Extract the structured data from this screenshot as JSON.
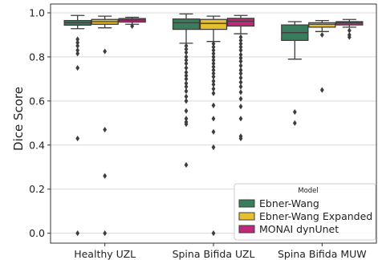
{
  "chart_data": {
    "type": "box",
    "xlabel": "",
    "ylabel": "Dice Score",
    "ylim": [
      -0.045,
      1.04
    ],
    "yticks": [
      "0.0",
      "0.2",
      "0.4",
      "0.6",
      "0.8",
      "1.0"
    ],
    "grid": "horizontal",
    "legend_position": "lower-right",
    "legend_title": "Model",
    "categories": [
      "Healthy UZL",
      "Spina Bifida UZL",
      "Spina Bifida MUW"
    ],
    "series": [
      {
        "name": "Ebner-Wang",
        "color": "#3a7d5c",
        "boxes": [
          {
            "whislo": 0.928,
            "q1": 0.944,
            "med": 0.955,
            "q3": 0.965,
            "whishi": 0.988,
            "fliers": [
              0.88,
              0.865,
              0.85,
              0.83,
              0.815,
              0.75,
              0.43,
              0.0
            ]
          },
          {
            "whislo": 0.862,
            "q1": 0.925,
            "med": 0.955,
            "q3": 0.972,
            "whishi": 0.995,
            "fliers": [
              0.85,
              0.835,
              0.82,
              0.8,
              0.785,
              0.77,
              0.75,
              0.73,
              0.715,
              0.7,
              0.68,
              0.665,
              0.645,
              0.62,
              0.6,
              0.555,
              0.52,
              0.505,
              0.495,
              0.31
            ]
          },
          {
            "whislo": 0.79,
            "q1": 0.875,
            "med": 0.91,
            "q3": 0.945,
            "whishi": 0.96,
            "fliers": [
              0.55,
              0.5
            ]
          }
        ]
      },
      {
        "name": "Ebner-Wang Expanded",
        "color": "#e6c02e",
        "boxes": [
          {
            "whislo": 0.932,
            "q1": 0.948,
            "med": 0.96,
            "q3": 0.97,
            "whishi": 0.985,
            "fliers": [
              0.825,
              0.47,
              0.26,
              0.0
            ]
          },
          {
            "whislo": 0.87,
            "q1": 0.925,
            "med": 0.952,
            "q3": 0.97,
            "whishi": 0.985,
            "fliers": [
              0.86,
              0.845,
              0.83,
              0.815,
              0.8,
              0.785,
              0.77,
              0.755,
              0.74,
              0.725,
              0.71,
              0.69,
              0.675,
              0.655,
              0.635,
              0.58,
              0.52,
              0.46,
              0.39,
              0.0
            ]
          },
          {
            "whislo": 0.915,
            "q1": 0.935,
            "med": 0.948,
            "q3": 0.955,
            "whishi": 0.965,
            "fliers": [
              0.9,
              0.65
            ]
          }
        ]
      },
      {
        "name": "MONAI dynUnet",
        "color": "#c0287a",
        "boxes": [
          {
            "whislo": 0.948,
            "q1": 0.958,
            "med": 0.967,
            "q3": 0.974,
            "whishi": 0.98,
            "fliers": [
              0.94
            ]
          },
          {
            "whislo": 0.905,
            "q1": 0.94,
            "med": 0.962,
            "q3": 0.975,
            "whishi": 0.988,
            "fliers": [
              0.89,
              0.875,
              0.86,
              0.845,
              0.83,
              0.81,
              0.795,
              0.78,
              0.76,
              0.74,
              0.725,
              0.705,
              0.685,
              0.665,
              0.64,
              0.61,
              0.575,
              0.52,
              0.44,
              0.43
            ]
          },
          {
            "whislo": 0.935,
            "q1": 0.945,
            "med": 0.955,
            "q3": 0.96,
            "whishi": 0.97,
            "fliers": [
              0.92,
              0.9,
              0.89
            ]
          }
        ]
      }
    ]
  }
}
